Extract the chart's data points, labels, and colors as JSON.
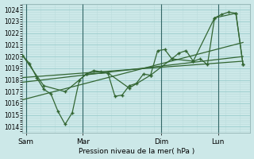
{
  "xlabel": "Pression niveau de la mer( hPa )",
  "bg_color": "#cce8e8",
  "grid_color_major": "#99cccc",
  "grid_color_minor": "#bbdddd",
  "line_color": "#336633",
  "vline_color": "#336666",
  "ylim": [
    1013.5,
    1024.5
  ],
  "yticks": [
    1014,
    1015,
    1016,
    1017,
    1018,
    1019,
    1020,
    1021,
    1022,
    1023,
    1024
  ],
  "day_labels": [
    "Sam",
    "Mar",
    "Dim",
    "Lun"
  ],
  "day_positions": [
    0.5,
    8.5,
    19.5,
    27.5
  ],
  "xlim": [
    0,
    32
  ],
  "series_main_x": [
    0,
    1,
    2,
    3,
    4,
    5,
    6,
    7,
    8,
    9,
    10,
    11,
    12,
    13,
    14,
    15,
    16,
    17,
    18,
    19,
    20,
    21,
    22,
    23,
    24,
    25,
    26,
    27,
    28,
    29,
    30,
    31
  ],
  "series_main_y": [
    1020.1,
    1019.4,
    1018.2,
    1017.2,
    1016.8,
    1015.3,
    1014.2,
    1015.2,
    1018.0,
    1018.5,
    1018.8,
    1018.7,
    1018.6,
    1016.6,
    1016.7,
    1017.5,
    1017.7,
    1018.5,
    1018.4,
    1020.5,
    1020.6,
    1019.8,
    1020.3,
    1020.5,
    1019.6,
    1019.8,
    1019.3,
    1023.3,
    1023.6,
    1023.8,
    1023.7,
    1019.3
  ],
  "series_smooth_x": [
    0,
    3,
    6,
    9,
    12,
    15,
    18,
    21,
    24,
    27,
    30,
    31
  ],
  "series_smooth_y": [
    1020.1,
    1017.5,
    1017.0,
    1018.5,
    1018.6,
    1017.3,
    1018.4,
    1019.8,
    1019.6,
    1023.3,
    1023.7,
    1019.3
  ],
  "trend1_x": [
    0,
    31
  ],
  "trend1_y": [
    1017.8,
    1020.0
  ],
  "trend2_x": [
    0,
    31
  ],
  "trend2_y": [
    1016.3,
    1021.2
  ],
  "trend3_x": [
    0,
    31
  ],
  "trend3_y": [
    1018.2,
    1019.6
  ]
}
